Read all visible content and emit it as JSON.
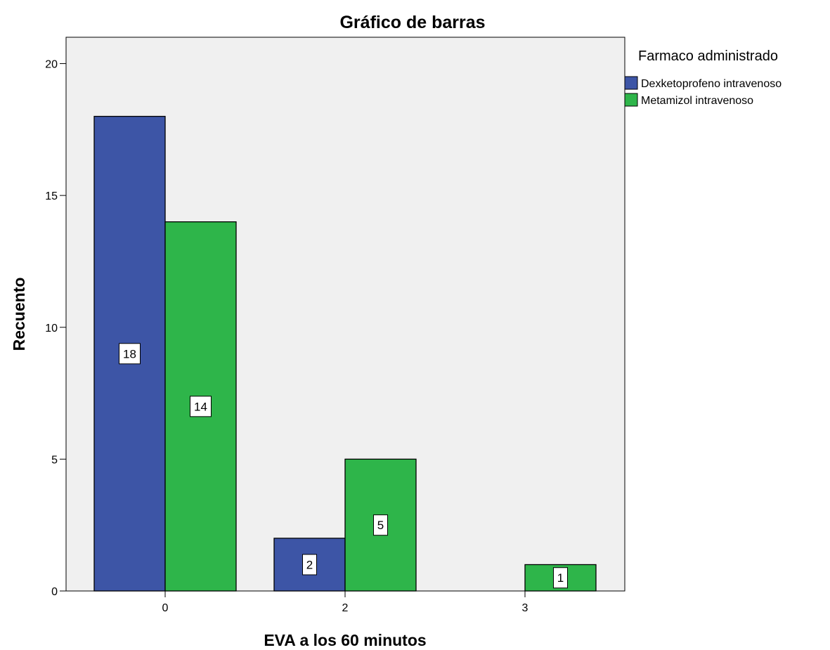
{
  "chart_data": {
    "type": "bar",
    "title": "Gráfico de barras",
    "xlabel": "EVA a los 60 minutos",
    "ylabel": "Recuento",
    "categories": [
      "0",
      "2",
      "3"
    ],
    "series": [
      {
        "name": "Dexketoprofeno intravenoso",
        "values": [
          18,
          2,
          null
        ],
        "color": "#3d55a6"
      },
      {
        "name": "Metamizol intravenoso",
        "values": [
          14,
          5,
          1
        ],
        "color": "#2eb54a"
      }
    ],
    "ylim": [
      0,
      21
    ],
    "yticks": [
      0,
      5,
      10,
      15,
      20
    ],
    "grid": false,
    "legend": {
      "title": "Farmaco administrado",
      "position": "right"
    },
    "plot_background": "#f0f0f0"
  }
}
